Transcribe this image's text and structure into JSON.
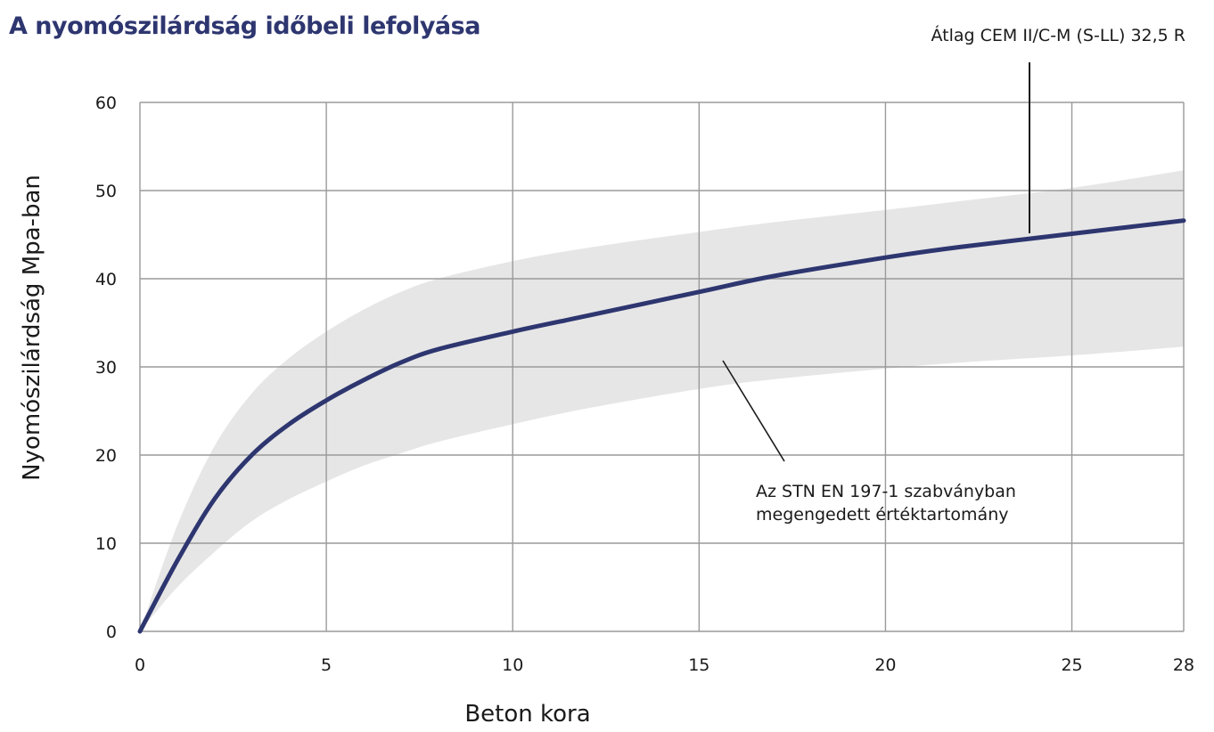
{
  "chart_data": {
    "type": "line",
    "title": "A nyomószilárdság időbeli lefolyása",
    "xlabel": "Beton kora",
    "ylabel": "Nyomószilárdság Mpa-ban",
    "xlim": [
      0,
      28
    ],
    "ylim": [
      0,
      60
    ],
    "x_ticks": [
      0,
      5,
      10,
      15,
      20,
      25,
      28
    ],
    "y_ticks": [
      0,
      10,
      20,
      30,
      40,
      50,
      60
    ],
    "grid": true,
    "colors": {
      "line": "#2e3670",
      "band": "#e6e6e6",
      "grid": "#9a9a9a"
    },
    "series": [
      {
        "name": "Átlag CEM II/C-M (S-LL) 32,5 R",
        "x": [
          0,
          1,
          2,
          3,
          4,
          5,
          6,
          7,
          8,
          10,
          12,
          15,
          17,
          20,
          22,
          25,
          28
        ],
        "y": [
          0,
          8,
          15,
          20,
          23.5,
          26.2,
          28.5,
          30.5,
          32,
          34,
          35.8,
          38.5,
          40.3,
          42.4,
          43.6,
          45.1,
          46.6
        ]
      }
    ],
    "band": {
      "name": "Az STN EN 197-1 szabványban megengedett értéktartomány",
      "x": [
        0,
        1,
        2,
        3,
        4,
        5,
        6,
        7,
        8,
        10,
        12,
        15,
        17,
        20,
        22,
        25,
        28
      ],
      "upper": [
        0,
        12,
        21,
        27,
        31,
        34,
        36.5,
        38.5,
        40,
        42,
        43.5,
        45.3,
        46.4,
        47.8,
        48.8,
        50.3,
        52.3
      ],
      "lower": [
        0,
        5,
        9,
        12.5,
        15,
        17,
        18.8,
        20.2,
        21.5,
        23.5,
        25.3,
        27.5,
        28.6,
        29.8,
        30.5,
        31.3,
        32.3
      ]
    },
    "annotations": [
      {
        "text": "Átlag CEM II/C-M (S-LL) 32,5 R"
      },
      {
        "text": "Az STN EN 197-1 szabványban"
      },
      {
        "text": "megengedett értéktartomány"
      }
    ]
  }
}
